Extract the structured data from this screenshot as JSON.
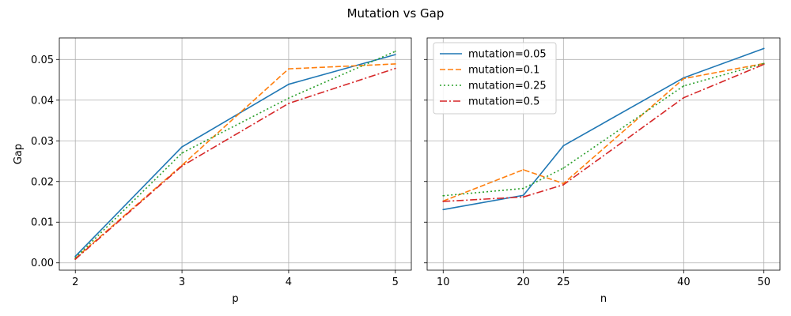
{
  "figure": {
    "title": "Mutation vs Gap"
  },
  "chart_data": [
    {
      "type": "line",
      "xlabel": "p",
      "ylabel": "Gap",
      "x": [
        2,
        3,
        4,
        5
      ],
      "xticks": [
        "2",
        "3",
        "4",
        "5"
      ],
      "xlim": [
        1.85,
        5.15
      ],
      "ylim": [
        -0.0018,
        0.0553
      ],
      "yticks": [
        "0.00",
        "0.01",
        "0.02",
        "0.03",
        "0.04",
        "0.05"
      ],
      "ytick_values": [
        0.0,
        0.01,
        0.02,
        0.03,
        0.04,
        0.05
      ],
      "grid": true,
      "legend": "none",
      "series": [
        {
          "name": "mutation=0.05",
          "values": [
            0.0016,
            0.0285,
            0.0439,
            0.0512
          ],
          "color": "#1f77b4",
          "dash": "solid"
        },
        {
          "name": "mutation=0.1",
          "values": [
            0.0011,
            0.024,
            0.0477,
            0.0489
          ],
          "color": "#ff7f0e",
          "dash": "dashed"
        },
        {
          "name": "mutation=0.25",
          "values": [
            0.0012,
            0.027,
            0.0405,
            0.052
          ],
          "color": "#2ca02c",
          "dash": "dotted"
        },
        {
          "name": "mutation=0.5",
          "values": [
            0.0009,
            0.0238,
            0.0392,
            0.0478
          ],
          "color": "#d62728",
          "dash": "dashdot"
        }
      ]
    },
    {
      "type": "line",
      "xlabel": "n",
      "ylabel": "",
      "x": [
        10,
        20,
        25,
        40,
        50
      ],
      "xticks": [
        "10",
        "20",
        "25",
        "40",
        "50"
      ],
      "xlim": [
        8.0,
        52.0
      ],
      "ylim": [
        -0.0018,
        0.0553
      ],
      "yticks": [
        "",
        "",
        "",
        "",
        "",
        ""
      ],
      "ytick_values": [
        0.0,
        0.01,
        0.02,
        0.03,
        0.04,
        0.05
      ],
      "grid": true,
      "legend": "top-left",
      "series": [
        {
          "name": "mutation=0.05",
          "values": [
            0.0131,
            0.0166,
            0.0288,
            0.0455,
            0.0527
          ],
          "color": "#1f77b4",
          "dash": "solid"
        },
        {
          "name": "mutation=0.1",
          "values": [
            0.0152,
            0.0229,
            0.0195,
            0.0453,
            0.049
          ],
          "color": "#ff7f0e",
          "dash": "dashed"
        },
        {
          "name": "mutation=0.25",
          "values": [
            0.0165,
            0.0183,
            0.0233,
            0.0435,
            0.049
          ],
          "color": "#2ca02c",
          "dash": "dotted"
        },
        {
          "name": "mutation=0.5",
          "values": [
            0.0151,
            0.0162,
            0.0192,
            0.0406,
            0.0488
          ],
          "color": "#d62728",
          "dash": "dashdot"
        }
      ]
    }
  ]
}
